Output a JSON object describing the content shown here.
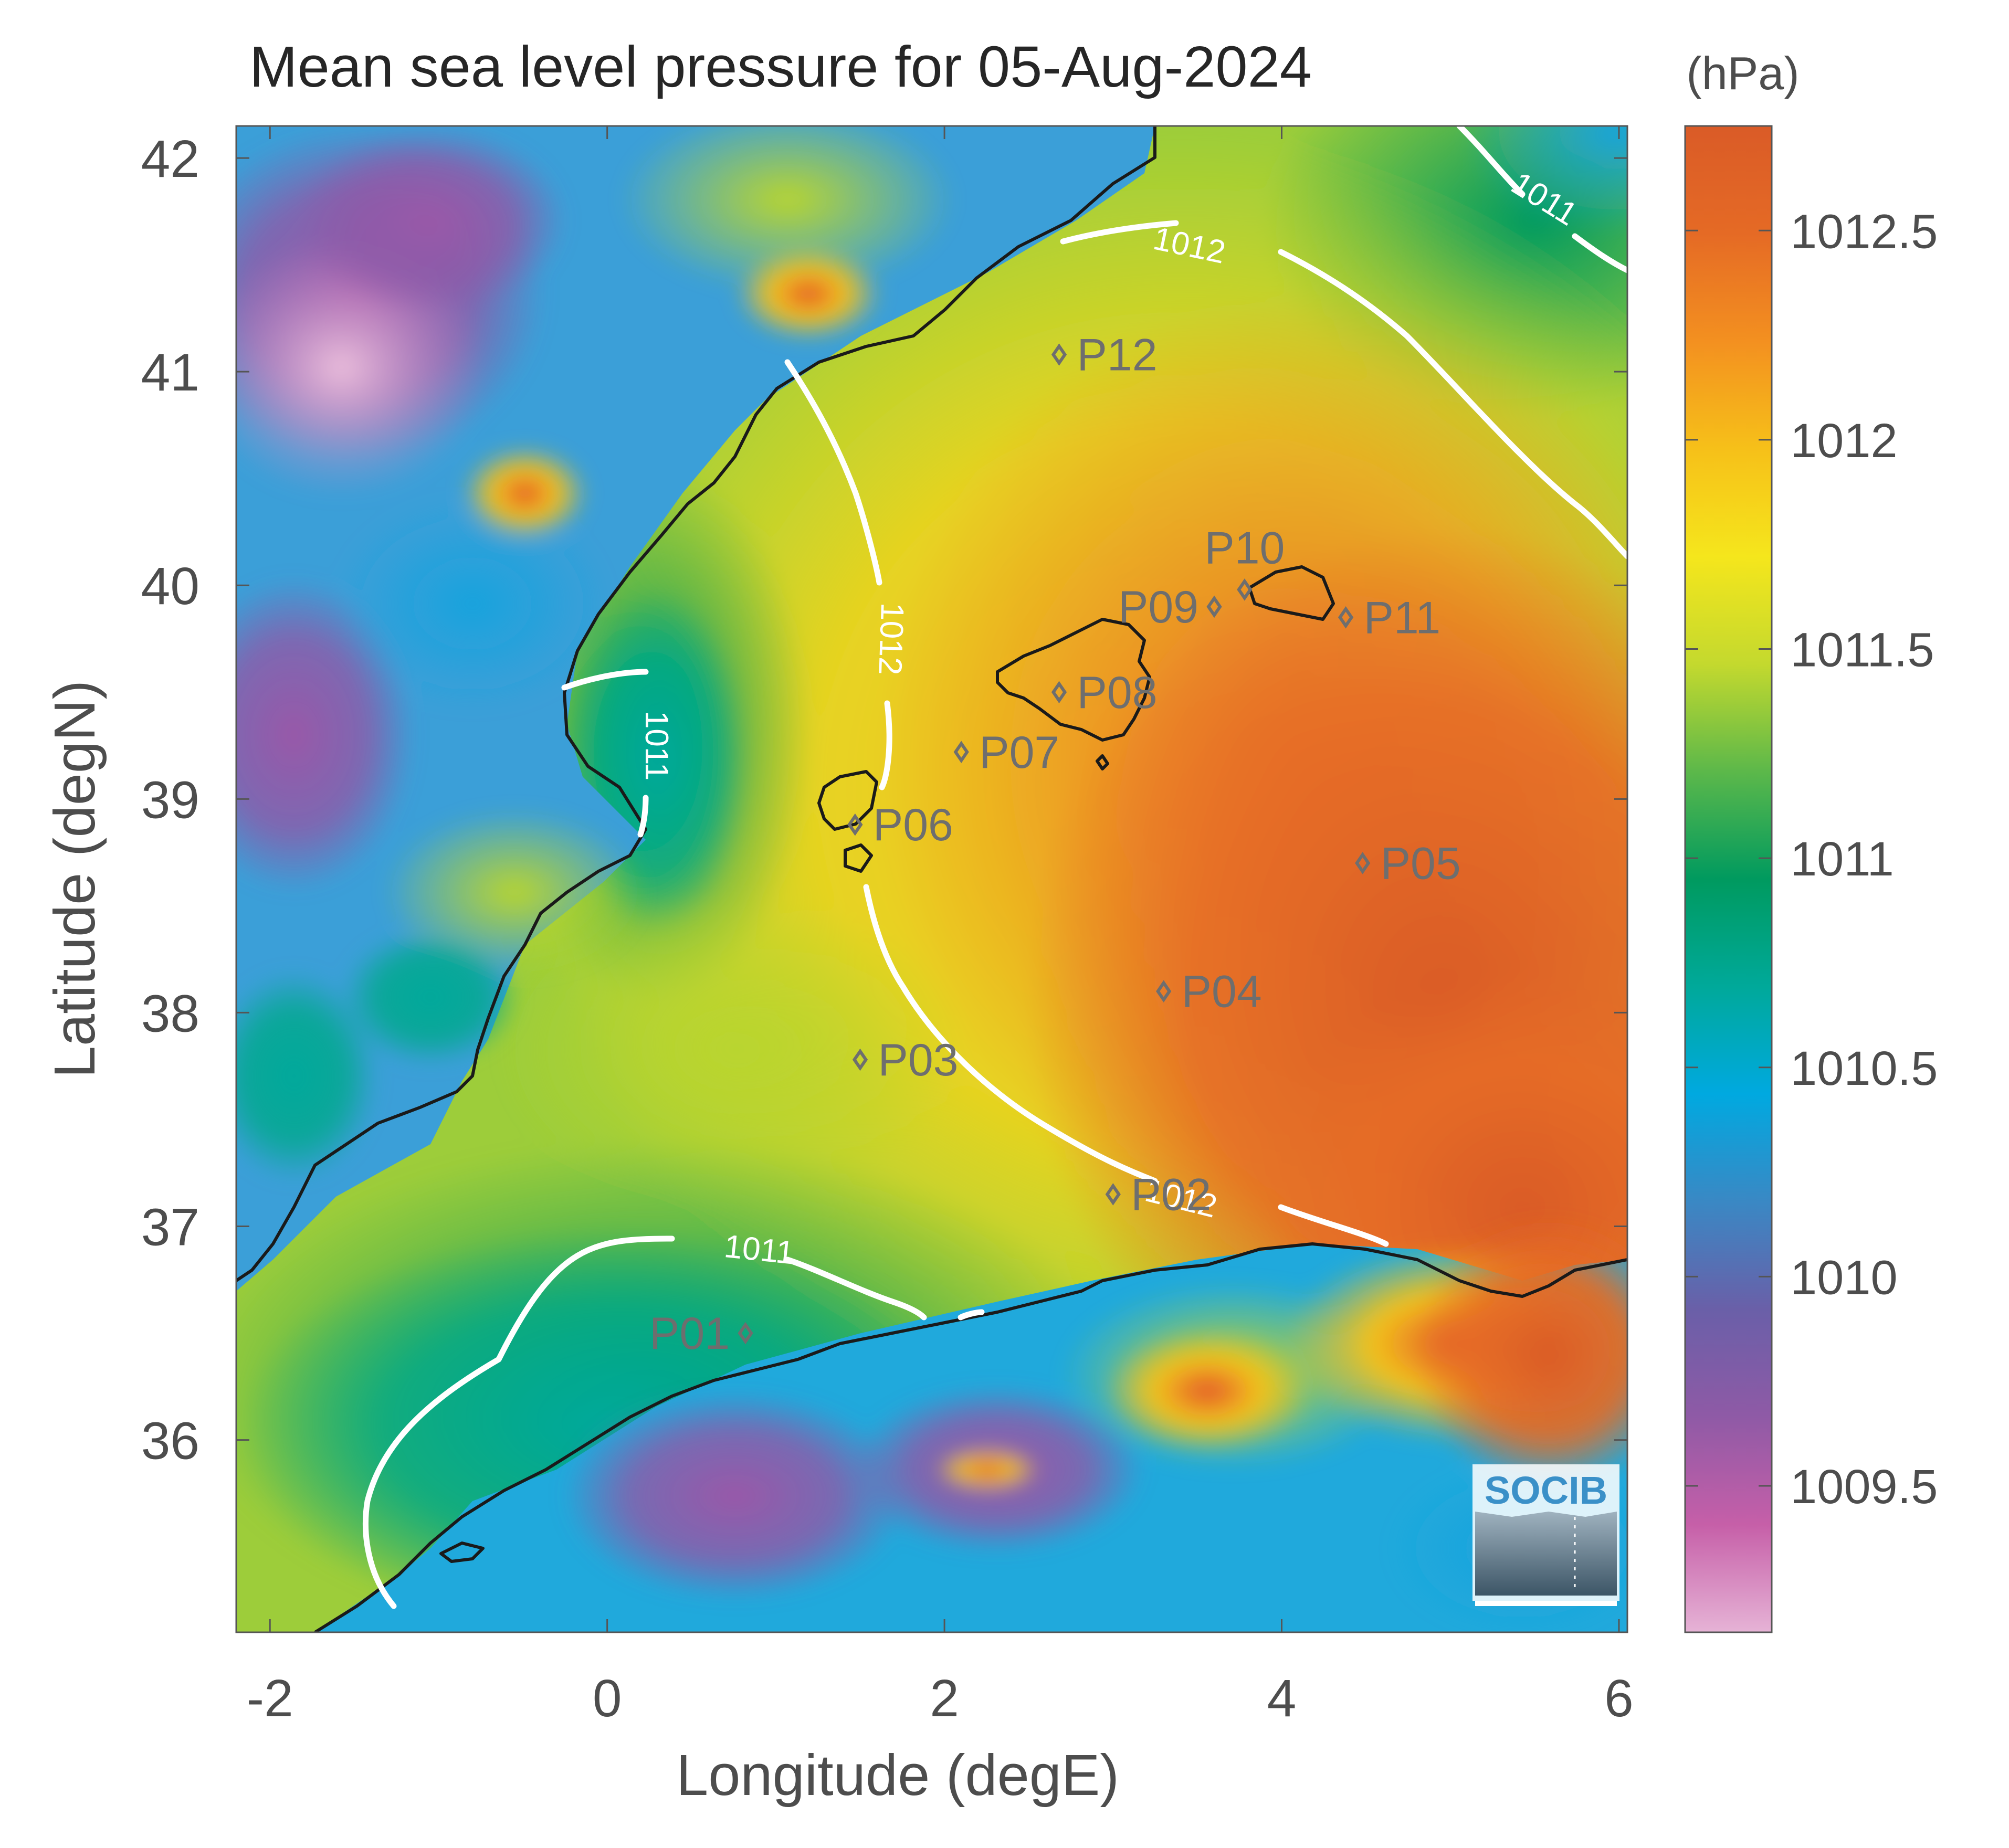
{
  "title": "Mean sea level pressure for 05-Aug-2024",
  "units": "(hPa)",
  "x_axis": {
    "label": "Longitude (degE)",
    "range": [
      -2.2,
      6.05
    ],
    "ticks": [
      {
        "v": -2,
        "label": "-2"
      },
      {
        "v": 0,
        "label": "0"
      },
      {
        "v": 2,
        "label": "2"
      },
      {
        "v": 4,
        "label": "4"
      },
      {
        "v": 6,
        "label": "6"
      }
    ]
  },
  "y_axis": {
    "label": "Latitude (degN)",
    "range": [
      35.1,
      42.15
    ],
    "ticks": [
      {
        "v": 36,
        "label": "36"
      },
      {
        "v": 37,
        "label": "37"
      },
      {
        "v": 38,
        "label": "38"
      },
      {
        "v": 39,
        "label": "39"
      },
      {
        "v": 40,
        "label": "40"
      },
      {
        "v": 41,
        "label": "41"
      },
      {
        "v": 42,
        "label": "42"
      }
    ]
  },
  "colorbar": {
    "range": [
      1009.15,
      1012.75
    ],
    "ticks": [
      {
        "v": 1009.5,
        "label": "1009.5"
      },
      {
        "v": 1010,
        "label": "1010"
      },
      {
        "v": 1010.5,
        "label": "1010.5"
      },
      {
        "v": 1011,
        "label": "1011"
      },
      {
        "v": 1011.5,
        "label": "1011.5"
      },
      {
        "v": 1012,
        "label": "1012"
      },
      {
        "v": 1012.5,
        "label": "1012.5"
      }
    ],
    "colors": [
      "#e6b3d6",
      "#c65fa8",
      "#8f5aa6",
      "#6a5fa8",
      "#3a88c4",
      "#00a9e0",
      "#00a99a",
      "#009a5f",
      "#5cb84a",
      "#c4d92e",
      "#f5e61c",
      "#f6c019",
      "#f39020",
      "#e56a25",
      "#da5b27"
    ]
  },
  "contour_labels": [
    {
      "label": "1011",
      "lon": 5.55,
      "lat": 41.8,
      "rot": 32
    },
    {
      "label": "1012",
      "lon": 3.45,
      "lat": 41.58,
      "rot": 12
    },
    {
      "label": "1012",
      "lon": 1.67,
      "lat": 39.75,
      "rot": 92
    },
    {
      "label": "1011",
      "lon": 0.28,
      "lat": 39.25,
      "rot": 90
    },
    {
      "label": "1011",
      "lon": 0.9,
      "lat": 36.88,
      "rot": 6
    },
    {
      "label": "1012",
      "lon": 3.4,
      "lat": 37.12,
      "rot": 14
    }
  ],
  "stations": [
    {
      "name": "P01",
      "lon": 0.82,
      "lat": 36.5,
      "label_side": "left"
    },
    {
      "name": "P02",
      "lon": 3.0,
      "lat": 37.15,
      "label_side": "right"
    },
    {
      "name": "P03",
      "lon": 1.5,
      "lat": 37.78,
      "label_side": "right"
    },
    {
      "name": "P04",
      "lon": 3.3,
      "lat": 38.1,
      "label_side": "right"
    },
    {
      "name": "P05",
      "lon": 4.48,
      "lat": 38.7,
      "label_side": "right"
    },
    {
      "name": "P06",
      "lon": 1.47,
      "lat": 38.88,
      "label_side": "right"
    },
    {
      "name": "P07",
      "lon": 2.1,
      "lat": 39.22,
      "label_side": "right"
    },
    {
      "name": "P08",
      "lon": 2.68,
      "lat": 39.5,
      "label_side": "right"
    },
    {
      "name": "P09",
      "lon": 3.6,
      "lat": 39.9,
      "label_side": "left"
    },
    {
      "name": "P10",
      "lon": 3.78,
      "lat": 39.98,
      "label_side": "above"
    },
    {
      "name": "P11",
      "lon": 4.38,
      "lat": 39.85,
      "label_side": "right"
    },
    {
      "name": "P12",
      "lon": 2.68,
      "lat": 41.08,
      "label_side": "right"
    }
  ],
  "logo": {
    "text": "SOCIB"
  }
}
